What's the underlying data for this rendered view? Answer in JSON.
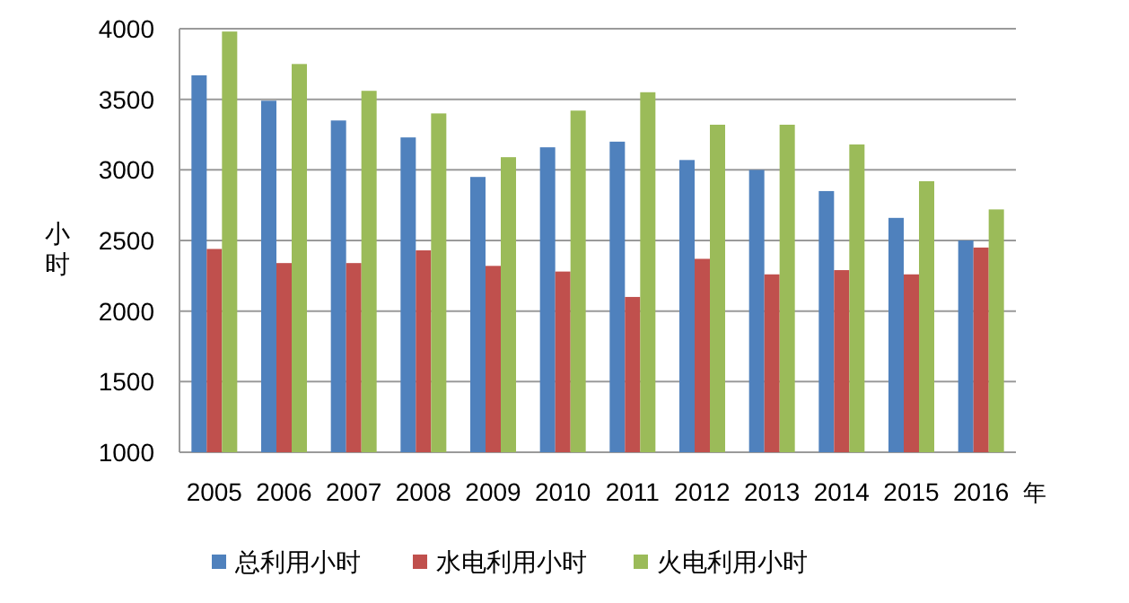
{
  "chart_data": {
    "type": "bar",
    "xlabel": "年",
    "ylabel": "小时",
    "categories": [
      "2005",
      "2006",
      "2007",
      "2008",
      "2009",
      "2010",
      "2011",
      "2012",
      "2013",
      "2014",
      "2015",
      "2016"
    ],
    "series": [
      {
        "name": "总利用小时",
        "color": "#4f81bd",
        "values": [
          3670,
          3490,
          3350,
          3230,
          2950,
          3160,
          3200,
          3070,
          3000,
          2850,
          2660,
          2500
        ]
      },
      {
        "name": "水电利用小时",
        "color": "#c0504d",
        "values": [
          2440,
          2340,
          2340,
          2430,
          2320,
          2280,
          2100,
          2370,
          2260,
          2290,
          2260,
          2450
        ]
      },
      {
        "name": "火电利用小时",
        "color": "#9bbb59",
        "values": [
          3980,
          3750,
          3560,
          3400,
          3090,
          3420,
          3550,
          3320,
          3320,
          3180,
          2920,
          2720
        ]
      }
    ],
    "ylim": [
      1000,
      4000
    ],
    "yticks": [
      1000,
      1500,
      2000,
      2500,
      3000,
      3500,
      4000
    ],
    "grid": "y",
    "legend": "bottom"
  }
}
